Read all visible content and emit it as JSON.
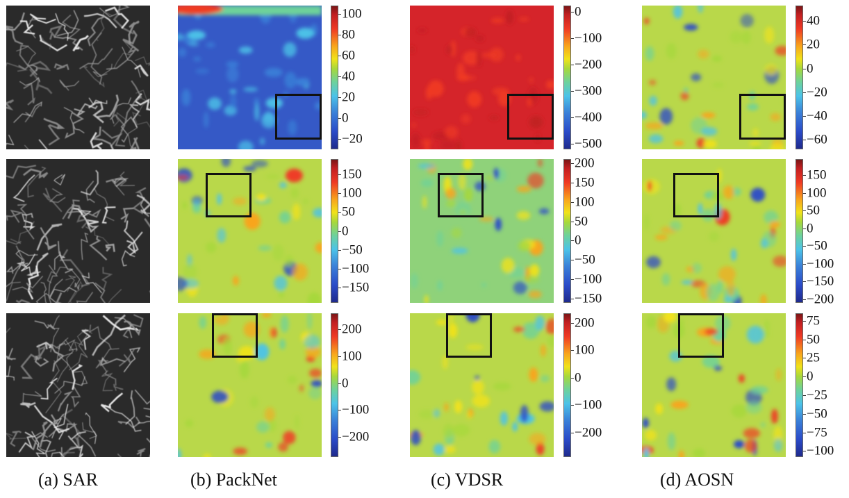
{
  "figure": {
    "columns": [
      {
        "id": "a",
        "caption": "(a) SAR"
      },
      {
        "id": "b",
        "caption": "(b) PackNet"
      },
      {
        "id": "c",
        "caption": "(c) VDSR"
      },
      {
        "id": "d",
        "caption": "(d) AOSN"
      }
    ],
    "colormap": "jet",
    "rows": [
      {
        "row": 1,
        "colorbars": {
          "b": {
            "min": -30,
            "max": 108,
            "ticks": [
              "100",
              "80",
              "60",
              "40",
              "20",
              "0",
              "−20"
            ]
          },
          "c": {
            "min": -520,
            "max": 25,
            "ticks": [
              "0",
              "−100",
              "−200",
              "−300",
              "−400",
              "−500"
            ]
          },
          "d": {
            "min": -68,
            "max": 53,
            "ticks": [
              "40",
              "20",
              "0",
              "−20",
              "−40",
              "−60"
            ]
          }
        }
      },
      {
        "row": 2,
        "colorbars": {
          "b": {
            "min": -190,
            "max": 190,
            "ticks": [
              "150",
              "100",
              "50",
              "0",
              "−50",
              "−100",
              "−150"
            ]
          },
          "c": {
            "min": -160,
            "max": 210,
            "ticks": [
              "200",
              "150",
              "100",
              "50",
              "0",
              "−50",
              "−100",
              "−150"
            ]
          },
          "d": {
            "min": -210,
            "max": 195,
            "ticks": [
              "150",
              "100",
              "50",
              "0",
              "−50",
              "−100",
              "−150",
              "−200"
            ]
          }
        }
      },
      {
        "row": 3,
        "colorbars": {
          "b": {
            "min": -275,
            "max": 260,
            "ticks": [
              "200",
              "100",
              "0",
              "−100",
              "−200"
            ]
          },
          "c": {
            "min": -290,
            "max": 235,
            "ticks": [
              "200",
              "100",
              "0",
              "−100",
              "−200"
            ]
          },
          "d": {
            "min": -108,
            "max": 85,
            "ticks": [
              "75",
              "50",
              "25",
              "0",
              "−25",
              "−50",
              "−75",
              "−100"
            ]
          }
        }
      }
    ]
  }
}
